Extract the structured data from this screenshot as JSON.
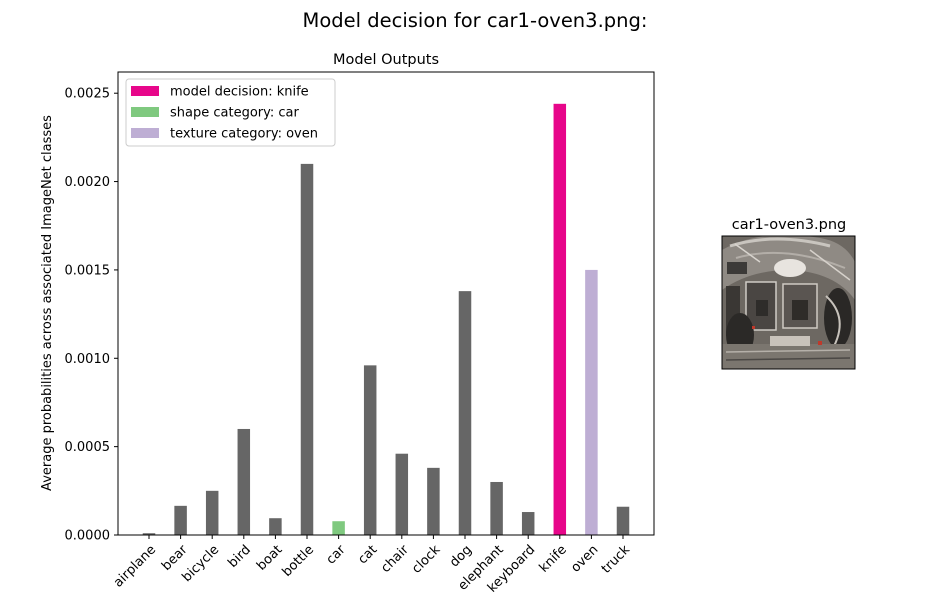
{
  "figure": {
    "suptitle": "Model decision for car1-oven3.png:"
  },
  "chart_data": {
    "type": "bar",
    "title": "Model Outputs",
    "xlabel": "",
    "ylabel": "Average probabilities across associated ImageNet classes",
    "ylim": [
      0,
      0.00262
    ],
    "yticks": [
      "0.0000",
      "0.0005",
      "0.0010",
      "0.0015",
      "0.0020",
      "0.0025"
    ],
    "ytick_values": [
      0,
      0.0005,
      0.001,
      0.0015,
      0.002,
      0.0025
    ],
    "categories": [
      "airplane",
      "bear",
      "bicycle",
      "bird",
      "boat",
      "bottle",
      "car",
      "cat",
      "chair",
      "clock",
      "dog",
      "elephant",
      "keyboard",
      "knife",
      "oven",
      "truck"
    ],
    "values": [
      1e-05,
      0.000165,
      0.00025,
      0.0006,
      9.5e-05,
      0.0021,
      7.8e-05,
      0.00096,
      0.00046,
      0.00038,
      0.00138,
      0.0003,
      0.00013,
      0.00244,
      0.0015,
      0.00016
    ],
    "bar_roles": [
      "other",
      "other",
      "other",
      "other",
      "other",
      "other",
      "shape",
      "other",
      "other",
      "other",
      "other",
      "other",
      "other",
      "decision",
      "texture",
      "other"
    ],
    "colors": {
      "other": "#666666",
      "decision": "#e7068a",
      "shape": "#7fc97f",
      "texture": "#beaed4"
    },
    "legend": {
      "placement": "top-left",
      "entries": [
        {
          "label": "model decision: knife",
          "role": "decision"
        },
        {
          "label": "shape category: car",
          "role": "shape"
        },
        {
          "label": "texture category: oven",
          "role": "texture"
        }
      ]
    },
    "grid": false
  },
  "image_panel": {
    "title": "car1-oven3.png"
  }
}
